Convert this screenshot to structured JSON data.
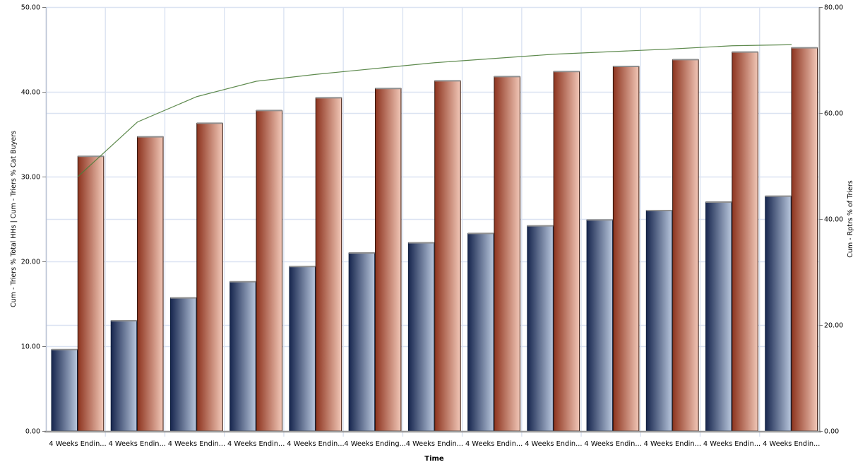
{
  "chart_data": {
    "type": "bar",
    "subtype": "grouped-bars-with-line-overlay",
    "title": "",
    "legend": "none",
    "grid": true,
    "categories": [
      "4 Weeks Endin...",
      "4 Weeks Endin...",
      "4 Weeks Endin...",
      "4 Weeks Endin...",
      "4 Weeks Endin...",
      "4 Weeks Ending...",
      "4 Weeks Endin...",
      "4 Weeks Endin...",
      "4 Weeks Endin...",
      "4 Weeks Endin...",
      "4 Weeks Endin...",
      "4 Weeks Endin...",
      "4 Weeks Endin..."
    ],
    "series": [
      {
        "name": "Cum - Triers % Total HHs",
        "kind": "bar",
        "axis": "left",
        "color_dark": "#17264E",
        "color_light": "#B8C6DC",
        "border_color": "#10203F",
        "values": [
          9.6,
          13.0,
          15.7,
          17.6,
          19.4,
          21.0,
          22.2,
          23.3,
          24.2,
          24.9,
          26.0,
          27.0,
          27.7
        ]
      },
      {
        "name": "Cum - Triers % Cat Buyers",
        "kind": "bar",
        "axis": "left",
        "color_dark": "#8D341F",
        "color_light": "#F1C7B7",
        "border_color": "#331309",
        "values": [
          32.4,
          34.7,
          36.3,
          37.8,
          39.3,
          40.4,
          41.3,
          41.8,
          42.4,
          43.0,
          43.8,
          44.7,
          45.2
        ]
      },
      {
        "name": "Cum - Rptrs % of Triers",
        "kind": "line",
        "axis": "right",
        "color": "#4E7E3C",
        "values": [
          48.0,
          58.3,
          63.1,
          66.0,
          67.3,
          68.4,
          69.5,
          70.3,
          71.1,
          71.6,
          72.1,
          72.7,
          72.9
        ]
      }
    ],
    "left_axis": {
      "title": "Cum - Triers % Total HHs | Cum - Triers % Cat Buyers",
      "range": [
        0,
        50
      ],
      "ticks": [
        50,
        40,
        30,
        20,
        10,
        0
      ],
      "tick_labels": [
        "50.00",
        "40.00",
        "30.00",
        "20.00",
        "10.00",
        "0.00"
      ]
    },
    "right_axis": {
      "title": "Cum - Rptrs % of Triers",
      "range": [
        0,
        80
      ],
      "ticks": [
        80,
        60,
        40,
        20,
        0
      ],
      "tick_labels": [
        "80.00",
        "60.00",
        "40.00",
        "20.00",
        "0.00"
      ]
    },
    "x_axis": {
      "title": "Time"
    },
    "colors": {
      "background": "#FFFFFF",
      "gridline": "#DBE3F2",
      "axis_line": "#9A9A9A",
      "bar_top_cap": "#8F8F8F",
      "text": "#000000"
    }
  }
}
